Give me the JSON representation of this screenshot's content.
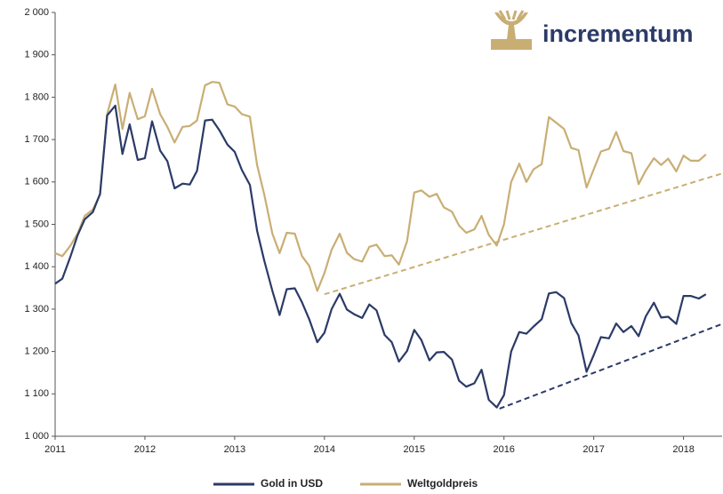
{
  "logo": "incrementum",
  "chart_data": {
    "type": "line",
    "x": [
      2011,
      2011.08,
      2011.17,
      2011.25,
      2011.33,
      2011.42,
      2011.5,
      2011.58,
      2011.67,
      2011.75,
      2011.83,
      2011.92,
      2012,
      2012.08,
      2012.17,
      2012.25,
      2012.33,
      2012.42,
      2012.5,
      2012.58,
      2012.67,
      2012.75,
      2012.83,
      2012.92,
      2013,
      2013.08,
      2013.17,
      2013.25,
      2013.33,
      2013.42,
      2013.5,
      2013.58,
      2013.67,
      2013.75,
      2013.83,
      2013.92,
      2014,
      2014.08,
      2014.17,
      2014.25,
      2014.33,
      2014.42,
      2014.5,
      2014.58,
      2014.67,
      2014.75,
      2014.83,
      2014.92,
      2015,
      2015.08,
      2015.17,
      2015.25,
      2015.33,
      2015.42,
      2015.5,
      2015.58,
      2015.67,
      2015.75,
      2015.83,
      2015.92,
      2016,
      2016.08,
      2016.17,
      2016.25,
      2016.33,
      2016.42,
      2016.5,
      2016.58,
      2016.67,
      2016.75,
      2016.83,
      2016.92,
      2017,
      2017.08,
      2017.17,
      2017.25,
      2017.33,
      2017.42,
      2017.5,
      2017.58,
      2017.67,
      2017.75,
      2017.83,
      2017.92,
      2018,
      2018.08,
      2018.17,
      2018.25
    ],
    "series": [
      {
        "name": "Gold in USD",
        "color": "#2b3a67",
        "values": [
          1360,
          1372,
          1424,
          1474,
          1512,
          1529,
          1572,
          1757,
          1780,
          1666,
          1736,
          1652,
          1656,
          1743,
          1674,
          1649,
          1585,
          1596,
          1594,
          1626,
          1745,
          1747,
          1722,
          1688,
          1671,
          1628,
          1593,
          1485,
          1414,
          1343,
          1286,
          1347,
          1349,
          1316,
          1276,
          1222,
          1244,
          1300,
          1336,
          1299,
          1288,
          1279,
          1311,
          1297,
          1239,
          1222,
          1176,
          1201,
          1251,
          1227,
          1179,
          1198,
          1199,
          1181,
          1131,
          1117,
          1125,
          1157,
          1086,
          1068,
          1097,
          1200,
          1246,
          1242,
          1259,
          1276,
          1337,
          1340,
          1326,
          1267,
          1238,
          1152,
          1192,
          1234,
          1231,
          1266,
          1246,
          1260,
          1236,
          1283,
          1315,
          1280,
          1282,
          1265,
          1331,
          1331,
          1325,
          1335
        ]
      },
      {
        "name": "Weltgoldpreis",
        "color": "#c9ae74",
        "values": [
          1432,
          1425,
          1450,
          1478,
          1520,
          1535,
          1570,
          1760,
          1830,
          1725,
          1810,
          1748,
          1755,
          1820,
          1760,
          1730,
          1693,
          1730,
          1732,
          1745,
          1828,
          1836,
          1834,
          1783,
          1778,
          1760,
          1754,
          1640,
          1570,
          1478,
          1432,
          1480,
          1478,
          1425,
          1402,
          1343,
          1385,
          1440,
          1478,
          1433,
          1418,
          1412,
          1447,
          1452,
          1425,
          1427,
          1405,
          1460,
          1575,
          1580,
          1565,
          1572,
          1540,
          1530,
          1497,
          1480,
          1488,
          1520,
          1475,
          1450,
          1500,
          1600,
          1643,
          1600,
          1630,
          1642,
          1753,
          1740,
          1725,
          1680,
          1675,
          1587,
          1630,
          1672,
          1678,
          1718,
          1673,
          1668,
          1595,
          1627,
          1656,
          1640,
          1655,
          1625,
          1662,
          1650,
          1650,
          1665
        ]
      }
    ],
    "trendlines": [
      {
        "color": "#2b3a67",
        "x": [
          2015.95,
          2018.43
        ],
        "values": [
          1065,
          1265
        ]
      },
      {
        "color": "#c9ae74",
        "x": [
          2014,
          2018.43
        ],
        "values": [
          1335,
          1620
        ]
      }
    ],
    "xlim": [
      2011,
      2018.43
    ],
    "xticks": [
      2011,
      2012,
      2013,
      2014,
      2015,
      2016,
      2017,
      2018
    ],
    "ylim": [
      1000,
      2000
    ],
    "yticks": [
      {
        "value": 1000,
        "label": "1 000"
      },
      {
        "value": 1100,
        "label": "1 100"
      },
      {
        "value": 1200,
        "label": "1 200"
      },
      {
        "value": 1300,
        "label": "1 300"
      },
      {
        "value": 1400,
        "label": "1 400"
      },
      {
        "value": 1500,
        "label": "1 500"
      },
      {
        "value": 1600,
        "label": "1 600"
      },
      {
        "value": 1700,
        "label": "1 700"
      },
      {
        "value": 1800,
        "label": "1 800"
      },
      {
        "value": 1900,
        "label": "1 900"
      },
      {
        "value": 2000,
        "label": "2 000"
      }
    ],
    "legend": "bottom"
  }
}
